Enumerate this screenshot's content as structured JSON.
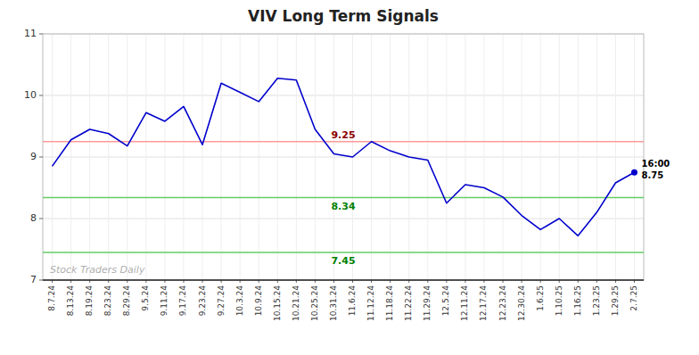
{
  "chart_data": {
    "type": "line",
    "title": "VIV Long Term Signals",
    "categories": [
      "8.7.24",
      "8.13.24",
      "8.19.24",
      "8.23.24",
      "8.29.24",
      "9.5.24",
      "9.11.24",
      "9.17.24",
      "9.23.24",
      "9.27.24",
      "10.3.24",
      "10.9.24",
      "10.15.24",
      "10.21.24",
      "10.25.24",
      "10.31.24",
      "11.6.24",
      "11.12.24",
      "11.18.24",
      "11.22.24",
      "11.29.24",
      "12.5.24",
      "12.11.24",
      "12.17.24",
      "12.23.24",
      "12.30.24",
      "1.6.25",
      "1.10.25",
      "1.16.25",
      "1.23.25",
      "1.29.25",
      "2.7.25"
    ],
    "values": [
      8.85,
      9.28,
      9.45,
      9.38,
      9.18,
      9.72,
      9.58,
      9.82,
      9.2,
      10.2,
      10.05,
      9.9,
      10.28,
      10.25,
      9.45,
      9.05,
      9.0,
      9.25,
      9.1,
      9.0,
      8.95,
      8.25,
      8.55,
      8.5,
      8.35,
      8.05,
      7.82,
      8.0,
      7.72,
      8.1,
      8.58,
      8.75
    ],
    "color": "#0000cc",
    "ylim": [
      7.0,
      11.0
    ],
    "yticks": [
      7,
      8,
      9,
      10,
      11
    ],
    "grid": true,
    "hlines": [
      {
        "value": 9.25,
        "color": "#ff9999",
        "label_color": "darkred"
      },
      {
        "value": 8.34,
        "color": "#66cc66",
        "label_color": "green"
      },
      {
        "value": 7.45,
        "color": "#66cc66",
        "label_color": "green"
      }
    ],
    "last_time": "16:00",
    "watermark": "Stock Traders Daily"
  }
}
